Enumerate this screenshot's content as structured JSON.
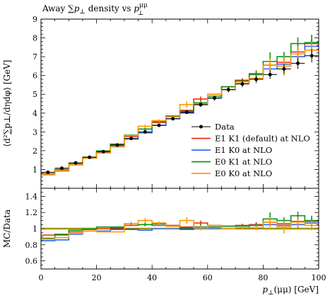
{
  "chart_data": {
    "type": "line",
    "title": "Away ∑p⊥ density vs p⊥^μμ",
    "title_parts": {
      "text": "Away ∑",
      "p": "p",
      "perp": "⊥",
      "rest": " density vs ",
      "p2": "p",
      "sup": "μμ",
      "sub": "⊥"
    },
    "xlabel": "p⊥(μμ) [GeV]",
    "xlabel_parts": {
      "p": "p",
      "perp": "⊥",
      "rest": "(μμ) [GeV]"
    },
    "ylabel": "⟨d²∑p⊥/dηdφ⟩ [GeV]",
    "ratio_ylabel": "MC/Data",
    "xlim": [
      0,
      100
    ],
    "ylim": [
      0,
      9
    ],
    "ratio_ylim": [
      0.5,
      1.5
    ],
    "x_ticks": [
      0,
      20,
      40,
      60,
      80,
      100
    ],
    "y_ticks": [
      1,
      2,
      3,
      4,
      5,
      6,
      7,
      8,
      9
    ],
    "ratio_y_ticks": [
      0.6,
      0.8,
      1,
      1.2,
      1.4
    ],
    "bin_edges": [
      0,
      5,
      10,
      15,
      20,
      25,
      30,
      35,
      40,
      45,
      50,
      55,
      60,
      65,
      70,
      75,
      80,
      85,
      90,
      95,
      100
    ],
    "data": {
      "name": "Data",
      "color": "#000000",
      "values": [
        0.85,
        1.07,
        1.35,
        1.65,
        1.95,
        2.3,
        2.65,
        3.0,
        3.35,
        3.7,
        4.05,
        4.45,
        4.8,
        5.25,
        5.55,
        5.8,
        6.05,
        6.35,
        6.65,
        7.05
      ],
      "errors": [
        0.04,
        0.04,
        0.05,
        0.05,
        0.06,
        0.06,
        0.07,
        0.08,
        0.08,
        0.09,
        0.1,
        0.12,
        0.13,
        0.15,
        0.17,
        0.2,
        0.22,
        0.25,
        0.3,
        0.35
      ]
    },
    "series": [
      {
        "name": "E1 K1 (default) at NLO",
        "color": "#ee3311",
        "values": [
          0.78,
          0.98,
          1.3,
          1.65,
          1.95,
          2.32,
          2.75,
          3.15,
          3.5,
          3.85,
          4.15,
          4.75,
          5.0,
          5.4,
          5.75,
          6.1,
          6.55,
          6.7,
          7.25,
          7.7
        ]
      },
      {
        "name": "E1 K0 at NLO",
        "color": "#3366ff",
        "values": [
          0.72,
          0.92,
          1.25,
          1.6,
          1.9,
          2.27,
          2.62,
          2.95,
          3.35,
          3.7,
          4.0,
          4.45,
          4.8,
          5.25,
          5.6,
          6.05,
          6.35,
          6.6,
          7.0,
          7.55
        ]
      },
      {
        "name": "E0 K1 at NLO",
        "color": "#109618",
        "values": [
          0.75,
          1.0,
          1.32,
          1.65,
          1.99,
          2.35,
          2.82,
          3.15,
          3.55,
          3.82,
          4.1,
          4.55,
          4.9,
          5.4,
          5.7,
          6.05,
          6.75,
          7.0,
          7.7,
          7.75
        ]
      },
      {
        "name": "E0 K0 at NLO",
        "color": "#ff9900",
        "values": [
          0.74,
          0.95,
          1.27,
          1.6,
          1.88,
          2.2,
          2.8,
          3.3,
          3.6,
          3.8,
          4.45,
          4.5,
          5.0,
          5.25,
          5.6,
          5.85,
          6.55,
          6.5,
          7.15,
          7.35
        ]
      }
    ],
    "ratio_series": [
      {
        "name": "E1 K1 (default) at NLO",
        "values": [
          0.92,
          0.92,
          0.96,
          0.99,
          1.0,
          1.01,
          1.04,
          1.05,
          1.04,
          1.04,
          1.02,
          1.07,
          1.04,
          1.03,
          1.04,
          1.05,
          1.08,
          1.06,
          1.09,
          1.09
        ],
        "errors": [
          0.0,
          0.0,
          0.0,
          0.0,
          0.0,
          0.0,
          0.0,
          0.02,
          0.0,
          0.0,
          0.0,
          0.03,
          0.0,
          0.0,
          0.02,
          0.03,
          0.04,
          0.05,
          0.05,
          0.06
        ]
      },
      {
        "name": "E1 K0 at NLO",
        "values": [
          0.85,
          0.86,
          0.93,
          0.97,
          0.97,
          0.99,
          0.99,
          0.98,
          1.0,
          1.0,
          0.99,
          1.0,
          1.0,
          1.0,
          1.01,
          1.04,
          1.05,
          1.04,
          1.05,
          1.07
        ],
        "errors": [
          0.0,
          0.0,
          0.0,
          0.0,
          0.0,
          0.0,
          0.0,
          0.0,
          0.0,
          0.0,
          0.0,
          0.0,
          0.0,
          0.0,
          0.0,
          0.02,
          0.03,
          0.04,
          0.04,
          0.05
        ]
      },
      {
        "name": "E0 K1 at NLO",
        "values": [
          0.88,
          0.93,
          0.98,
          1.0,
          1.02,
          1.02,
          1.06,
          1.05,
          1.06,
          1.03,
          1.01,
          1.02,
          1.02,
          1.03,
          1.03,
          1.04,
          1.12,
          1.1,
          1.16,
          1.1
        ],
        "errors": [
          0.0,
          0.0,
          0.0,
          0.0,
          0.0,
          0.0,
          0.02,
          0.02,
          0.0,
          0.0,
          0.0,
          0.03,
          0.0,
          0.0,
          0.02,
          0.03,
          0.08,
          0.04,
          0.05,
          0.06
        ]
      },
      {
        "name": "E0 K0 at NLO",
        "values": [
          0.87,
          0.89,
          0.94,
          0.97,
          0.96,
          0.96,
          1.06,
          1.1,
          1.07,
          1.03,
          1.1,
          1.01,
          1.04,
          1.0,
          1.01,
          1.01,
          1.08,
          1.02,
          1.08,
          1.04
        ],
        "errors": [
          0.0,
          0.0,
          0.0,
          0.0,
          0.0,
          0.0,
          0.0,
          0.03,
          0.02,
          0.0,
          0.04,
          0.03,
          0.0,
          0.0,
          0.02,
          0.03,
          0.06,
          0.08,
          0.06,
          0.06
        ]
      }
    ],
    "legend_position": "bottom-right",
    "grid": false,
    "data_band_color": "#ffee00"
  }
}
